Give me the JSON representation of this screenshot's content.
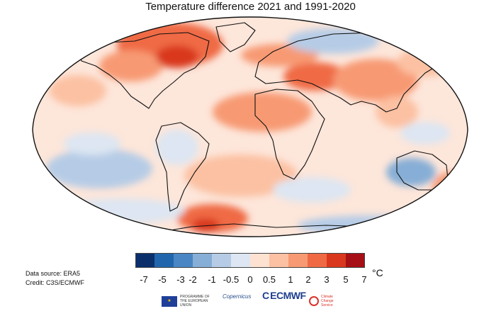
{
  "title": "Temperature difference 2021 and 1991-2020",
  "legend": {
    "colors": [
      "#0b2f6b",
      "#2166ac",
      "#4a86c4",
      "#86aed6",
      "#b6cce6",
      "#dde6f2",
      "#fde2d2",
      "#fcc1a3",
      "#f79a73",
      "#ef6a44",
      "#d9381e",
      "#a50f15"
    ],
    "ticks": [
      "-7",
      "-5",
      "-3",
      "-2",
      "-1",
      "-0.5",
      "0",
      "0.5",
      "1",
      "2",
      "3",
      "5",
      "7"
    ],
    "unit": "°C"
  },
  "credits": {
    "source": "Data source: ERA5",
    "credit": "Credit: C3S/ECMWF"
  },
  "logos": {
    "eu": "PROGRAMME OF THE EUROPEAN UNION",
    "copernicus": "Copernicus",
    "ecmwf": "ECMWF",
    "c3s": "Climate Change Service"
  },
  "colors": {
    "ocean_neutral": "#fde6da",
    "coastline": "#111111"
  }
}
